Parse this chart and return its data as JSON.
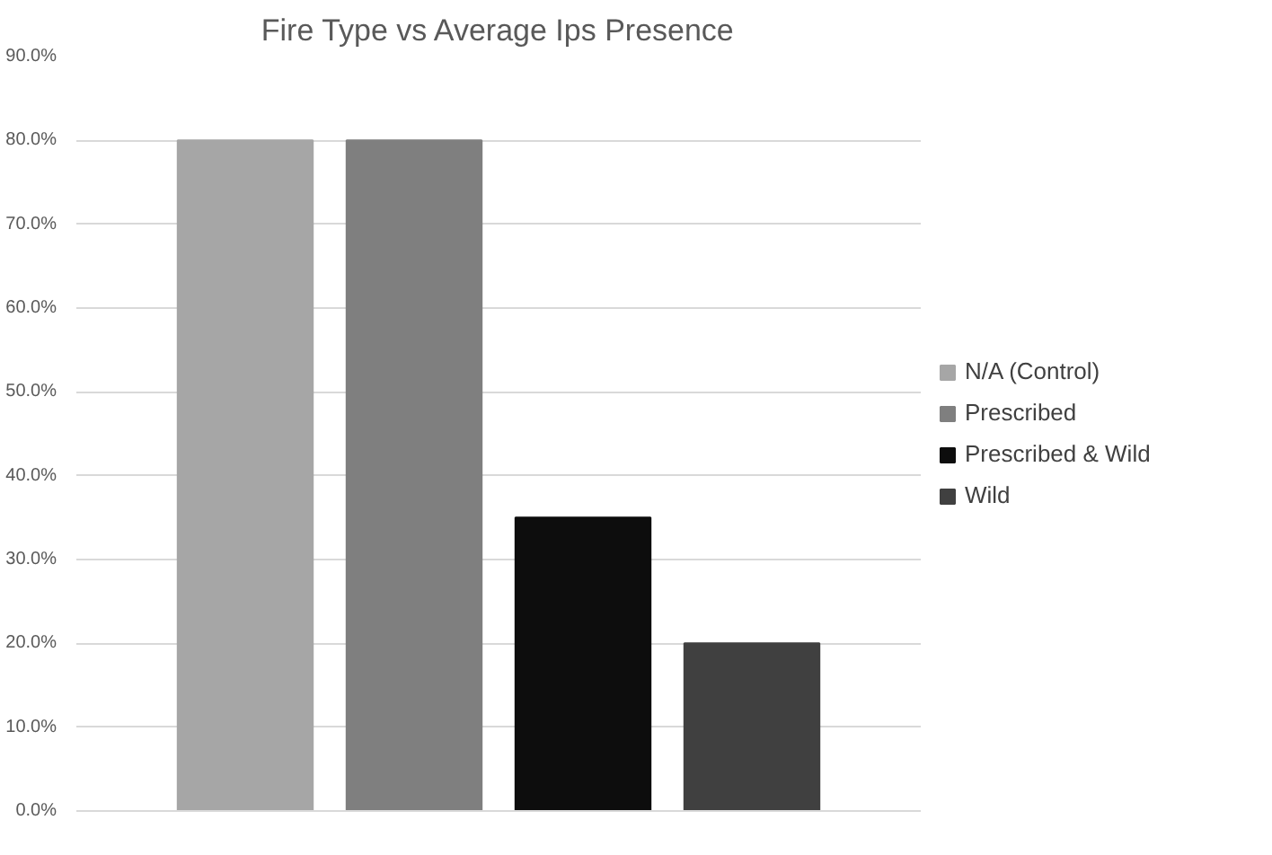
{
  "chart_data": {
    "type": "bar",
    "title": "Fire Type vs Average Ips Presence",
    "categories": [
      null
    ],
    "series": [
      {
        "name": "N/A (Control)",
        "color": "#a6a6a6",
        "values": [
          80
        ]
      },
      {
        "name": "Prescribed",
        "color": "#7f7f7f",
        "values": [
          80
        ]
      },
      {
        "name": "Prescribed & Wild",
        "color": "#0d0d0d",
        "values": [
          35
        ]
      },
      {
        "name": "Wild",
        "color": "#404040",
        "values": [
          20
        ]
      }
    ],
    "ylim": [
      0,
      90
    ],
    "yticks": [
      {
        "value": 0,
        "label": "0.0%"
      },
      {
        "value": 10,
        "label": "10.0%"
      },
      {
        "value": 20,
        "label": "20.0%"
      },
      {
        "value": 30,
        "label": "30.0%"
      },
      {
        "value": 40,
        "label": "40.0%"
      },
      {
        "value": 50,
        "label": "50.0%"
      },
      {
        "value": 60,
        "label": "60.0%"
      },
      {
        "value": 70,
        "label": "70.0%"
      },
      {
        "value": 80,
        "label": "80.0%"
      },
      {
        "value": 90,
        "label": "90.0%"
      }
    ],
    "grid": "y",
    "legend": "right"
  }
}
